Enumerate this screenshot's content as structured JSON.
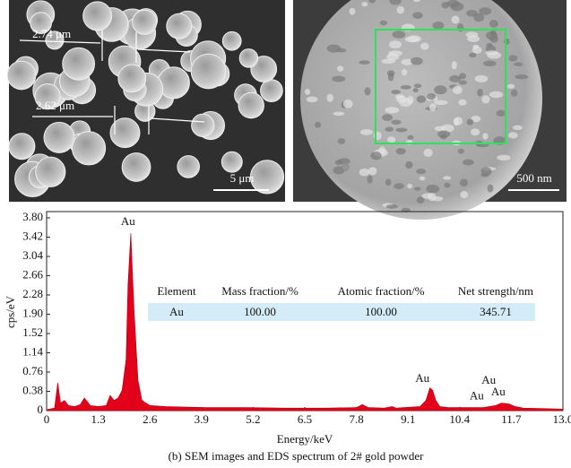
{
  "images": {
    "left": {
      "measurements": [
        "2.74 μm",
        "2.62 μm"
      ],
      "scale_bar": "5 μm"
    },
    "right": {
      "scale_bar": "500 nm"
    }
  },
  "chart_data": {
    "type": "area",
    "x_label": "Energy/keV",
    "y_label": "cps/eV",
    "xlim": [
      0,
      13.0
    ],
    "xticks": [
      0,
      1.3,
      2.6,
      3.9,
      5.2,
      6.5,
      7.8,
      9.1,
      10.4,
      11.7,
      {
        "value": 13.0,
        "label": "13.0"
      }
    ],
    "ylim": [
      0,
      3.8
    ],
    "yticks": [
      0,
      0.38,
      0.76,
      1.14,
      1.52,
      {
        "value": 1.9,
        "label": "1.90"
      },
      2.28,
      2.66,
      3.04,
      3.42,
      {
        "value": 3.8,
        "label": "3.80"
      }
    ],
    "series": [
      {
        "color": "#e3001b",
        "x": [
          0,
          0.2,
          0.28,
          0.35,
          0.45,
          0.55,
          0.7,
          0.85,
          0.95,
          1.1,
          1.3,
          1.5,
          1.6,
          1.7,
          1.8,
          1.9,
          2.0,
          2.05,
          2.12,
          2.2,
          2.3,
          2.4,
          2.6,
          3.0,
          3.5,
          4.0,
          5.0,
          6.0,
          7.0,
          7.8,
          7.95,
          8.1,
          8.5,
          8.7,
          8.8,
          9.0,
          9.4,
          9.55,
          9.65,
          9.72,
          9.8,
          9.9,
          10.1,
          10.5,
          11.0,
          11.3,
          11.45,
          11.55,
          11.65,
          11.8,
          12.0,
          12.5,
          13.0
        ],
        "values": [
          0.02,
          0.05,
          0.55,
          0.15,
          0.2,
          0.1,
          0.08,
          0.12,
          0.25,
          0.1,
          0.08,
          0.1,
          0.3,
          0.2,
          0.25,
          0.4,
          1.0,
          2.5,
          3.5,
          2.0,
          0.6,
          0.2,
          0.1,
          0.08,
          0.07,
          0.06,
          0.06,
          0.05,
          0.05,
          0.06,
          0.12,
          0.06,
          0.05,
          0.08,
          0.05,
          0.06,
          0.08,
          0.2,
          0.45,
          0.4,
          0.2,
          0.08,
          0.06,
          0.06,
          0.06,
          0.1,
          0.15,
          0.14,
          0.13,
          0.08,
          0.05,
          0.04,
          0.03
        ]
      }
    ],
    "annotations": [
      {
        "text": "Au",
        "x": 2.05,
        "y": 3.71
      },
      {
        "text": "Au",
        "x": 9.46,
        "y": 0.62
      },
      {
        "text": "Au",
        "x": 11.13,
        "y": 0.58
      },
      {
        "text": "Au",
        "x": 10.83,
        "y": 0.27
      },
      {
        "text": "Au",
        "x": 11.37,
        "y": 0.35
      }
    ],
    "table": {
      "columns": [
        "Element",
        "Mass fraction/%",
        "Atomic fraction/%",
        "Net strength/nm"
      ],
      "rows": [
        [
          "Au",
          "100.00",
          "100.00",
          "345.71"
        ]
      ]
    }
  },
  "caption": "(b) SEM images and EDS spectrum of 2# gold powder"
}
